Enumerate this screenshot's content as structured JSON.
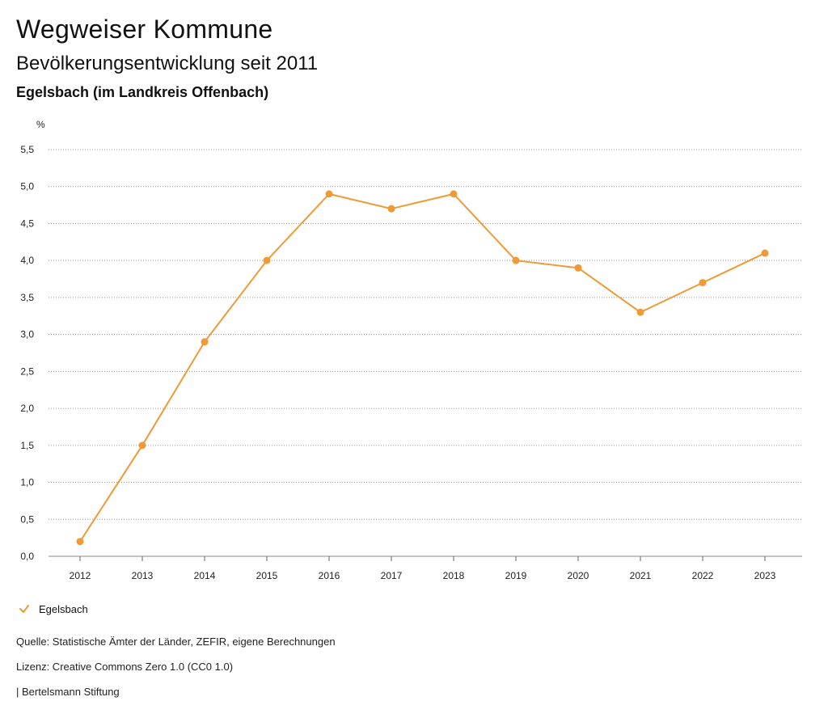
{
  "header": {
    "title": "Wegweiser Kommune",
    "subtitle": "Bevölkerungsentwicklung seit 2011",
    "region": "Egelsbach (im Landkreis Offenbach)"
  },
  "chart_data": {
    "type": "line",
    "ylabel": "%",
    "xlabel": "",
    "ylim": [
      0,
      5.5
    ],
    "yticks": [
      "0,0",
      "0,5",
      "1,0",
      "1,5",
      "2,0",
      "2,5",
      "3,0",
      "3,5",
      "4,0",
      "4,5",
      "5,0",
      "5,5"
    ],
    "ytick_values": [
      0,
      0.5,
      1,
      1.5,
      2,
      2.5,
      3,
      3.5,
      4,
      4.5,
      5,
      5.5
    ],
    "categories": [
      "2012",
      "2013",
      "2014",
      "2015",
      "2016",
      "2017",
      "2018",
      "2019",
      "2020",
      "2021",
      "2022",
      "2023"
    ],
    "series": [
      {
        "name": "Egelsbach",
        "color": "#ef9a37",
        "values": [
          0.2,
          1.5,
          2.9,
          4.0,
          4.9,
          4.7,
          4.9,
          4.0,
          3.9,
          3.3,
          3.7,
          4.1
        ]
      }
    ],
    "grid": true,
    "legend": "bottom-left"
  },
  "legend": {
    "label": "Egelsbach",
    "icon": "check-icon"
  },
  "footer": {
    "source": "Quelle: Statistische Ämter der Länder, ZEFIR, eigene Berechnungen",
    "license": "Lizenz: Creative Commons Zero 1.0 (CC0 1.0)",
    "publisher": "| Bertelsmann Stiftung"
  }
}
